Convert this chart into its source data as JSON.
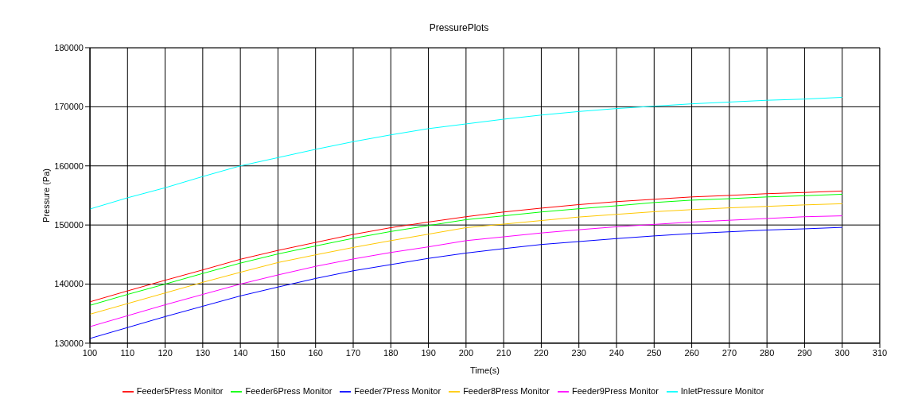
{
  "chart_data": {
    "type": "line",
    "title": "PressurePlots",
    "xlabel": "Time(s)",
    "ylabel": "Pressure (Pa)",
    "x": [
      100,
      110,
      120,
      130,
      140,
      150,
      160,
      170,
      180,
      190,
      200,
      210,
      220,
      230,
      240,
      250,
      260,
      270,
      280,
      290,
      300
    ],
    "series": [
      {
        "name": "Feeder5Press Monitor",
        "color": "#ff0000",
        "values": [
          137000,
          138850,
          140650,
          142400,
          144200,
          145700,
          147050,
          148400,
          149550,
          150500,
          151400,
          152200,
          152850,
          153450,
          153950,
          154350,
          154750,
          155000,
          155300,
          155500,
          155750
        ]
      },
      {
        "name": "Feeder6Press Monitor",
        "color": "#00ff00",
        "values": [
          136400,
          138250,
          140000,
          141800,
          143550,
          145100,
          146450,
          147750,
          148900,
          149900,
          150900,
          151550,
          152200,
          152750,
          153250,
          153800,
          154200,
          154450,
          154750,
          154950,
          155200
        ]
      },
      {
        "name": "Feeder7Press Monitor",
        "color": "#0000ff",
        "values": [
          130800,
          132650,
          134500,
          136250,
          138000,
          139500,
          140950,
          142250,
          143300,
          144350,
          145250,
          146000,
          146700,
          147200,
          147700,
          148150,
          148550,
          148850,
          149150,
          149350,
          149600
        ]
      },
      {
        "name": "Feeder8Press Monitor",
        "color": "#ffc800",
        "values": [
          134900,
          136700,
          138500,
          140300,
          142000,
          143650,
          144950,
          146200,
          147350,
          148450,
          149550,
          150150,
          150750,
          151350,
          151800,
          152250,
          152600,
          152900,
          153150,
          153400,
          153600
        ]
      },
      {
        "name": "Feeder9Press Monitor",
        "color": "#ff00ff",
        "values": [
          132800,
          134650,
          136500,
          138250,
          140000,
          141550,
          143000,
          144250,
          145350,
          146300,
          147350,
          148000,
          148650,
          149200,
          149700,
          150100,
          150500,
          150800,
          151100,
          151400,
          151550
        ]
      },
      {
        "name": "InletPressure Monitor",
        "color": "#00ffff",
        "values": [
          152700,
          154600,
          156300,
          158200,
          160000,
          161400,
          162800,
          164100,
          165250,
          166300,
          167100,
          167900,
          168600,
          169200,
          169700,
          170100,
          170500,
          170800,
          171100,
          171300,
          171600
        ]
      }
    ],
    "xlim": [
      100,
      310
    ],
    "xticks": [
      100,
      110,
      120,
      130,
      140,
      150,
      160,
      170,
      180,
      190,
      200,
      210,
      220,
      230,
      240,
      250,
      260,
      270,
      280,
      290,
      300,
      310
    ],
    "ylim": [
      130000,
      180000
    ],
    "yticks": [
      130000,
      140000,
      150000,
      160000,
      170000,
      180000
    ],
    "grid": true,
    "legend": "bottom",
    "marker": "none",
    "line_style": "solid"
  }
}
